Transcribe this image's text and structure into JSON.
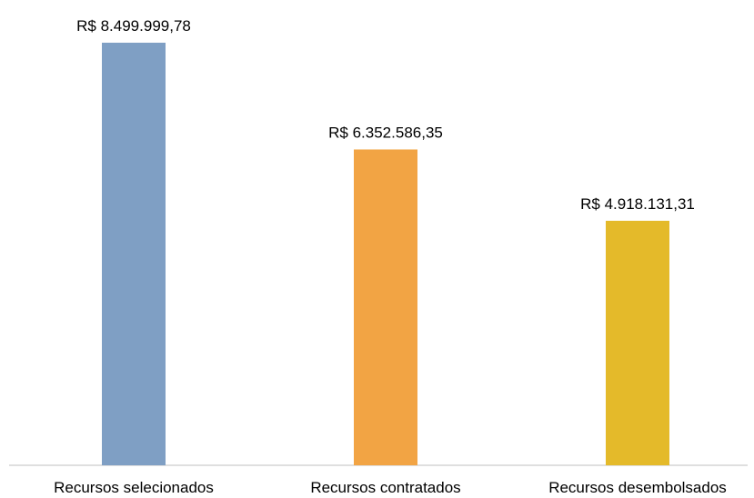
{
  "chart_data": {
    "type": "bar",
    "title": "",
    "xlabel": "",
    "ylabel": "",
    "categories": [
      "Recursos selecionados",
      "Recursos contratados",
      "Recursos desembolsados"
    ],
    "values": [
      8499999.78,
      6352586.35,
      4918131.31
    ],
    "data_labels": [
      "R$ 8.499.999,78",
      "R$ 6.352.586,35",
      "R$ 4.918.131,31"
    ],
    "colors": [
      "#7f9fc4",
      "#f2a444",
      "#e4ba2a"
    ],
    "ylim": [
      0,
      9500000
    ],
    "grid": false,
    "legend": "none"
  }
}
